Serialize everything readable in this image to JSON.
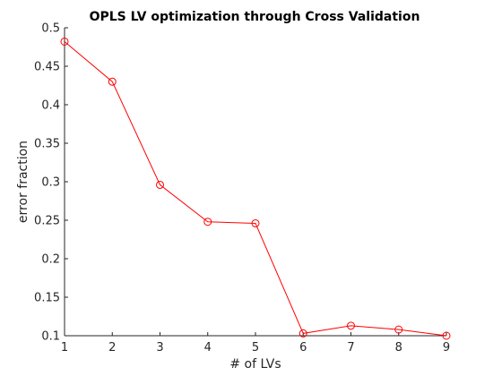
{
  "chart_data": {
    "type": "line",
    "title": "OPLS LV optimization through Cross Validation",
    "xlabel": "# of LVs",
    "ylabel": "error fraction",
    "x": [
      1,
      2,
      3,
      4,
      5,
      6,
      7,
      8,
      9
    ],
    "y": [
      0.482,
      0.43,
      0.296,
      0.248,
      0.246,
      0.103,
      0.113,
      0.108,
      0.1
    ],
    "xlim": [
      1,
      9
    ],
    "ylim": [
      0.1,
      0.5
    ],
    "xticks": [
      1,
      2,
      3,
      4,
      5,
      6,
      7,
      8,
      9
    ],
    "xtick_labels": [
      "1",
      "2",
      "3",
      "4",
      "5",
      "6",
      "7",
      "8",
      "9"
    ],
    "yticks": [
      0.1,
      0.15,
      0.2,
      0.25,
      0.3,
      0.35,
      0.4,
      0.45,
      0.5
    ],
    "ytick_labels": [
      "0.1",
      "0.15",
      "0.2",
      "0.25",
      "0.3",
      "0.35",
      "0.4",
      "0.45",
      "0.5"
    ],
    "grid": false,
    "legend": false,
    "line_color": "#ff0000",
    "marker": "circle",
    "axis_color": "#262626"
  }
}
